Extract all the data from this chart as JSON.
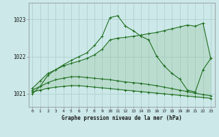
{
  "title": "Graphe pression niveau de la mer (hPa)",
  "bg_color": "#cce8e8",
  "grid_color": "#aacccc",
  "line_color": "#1e6e1e",
  "fill_color": "#aaccaa",
  "x_min": -0.5,
  "x_max": 23.5,
  "y_min": 1020.65,
  "y_max": 1023.45,
  "y_ticks": [
    1021,
    1022,
    1023
  ],
  "x_ticks": [
    0,
    1,
    2,
    3,
    4,
    5,
    6,
    7,
    8,
    9,
    10,
    11,
    12,
    13,
    14,
    15,
    16,
    17,
    18,
    19,
    20,
    21,
    22,
    23
  ],
  "series_main": [
    1021.0,
    1021.2,
    1021.5,
    1021.65,
    1021.78,
    1021.9,
    1022.0,
    1022.1,
    1022.3,
    1022.55,
    1023.05,
    1023.1,
    1022.82,
    1022.7,
    1022.55,
    1022.45,
    1022.02,
    1021.75,
    1021.55,
    1021.4,
    1021.1,
    1021.05,
    1021.65,
    1021.95
  ],
  "series_max": [
    1021.15,
    1021.35,
    1021.55,
    1021.65,
    1021.75,
    1021.82,
    1021.88,
    1021.95,
    1022.05,
    1022.2,
    1022.45,
    1022.5,
    1022.52,
    1022.55,
    1022.58,
    1022.62,
    1022.65,
    1022.7,
    1022.75,
    1022.8,
    1022.85,
    1022.82,
    1022.9,
    1021.95
  ],
  "series_min": [
    1021.05,
    1021.1,
    1021.15,
    1021.18,
    1021.2,
    1021.22,
    1021.22,
    1021.2,
    1021.18,
    1021.16,
    1021.14,
    1021.12,
    1021.1,
    1021.08,
    1021.06,
    1021.04,
    1021.02,
    1021.0,
    1020.98,
    1020.96,
    1020.94,
    1020.92,
    1020.9,
    1020.88
  ],
  "series_mid": [
    1021.1,
    1021.2,
    1021.3,
    1021.38,
    1021.42,
    1021.46,
    1021.46,
    1021.44,
    1021.42,
    1021.4,
    1021.38,
    1021.35,
    1021.32,
    1021.3,
    1021.28,
    1021.25,
    1021.22,
    1021.18,
    1021.14,
    1021.1,
    1021.06,
    1021.02,
    1020.98,
    1020.95
  ]
}
